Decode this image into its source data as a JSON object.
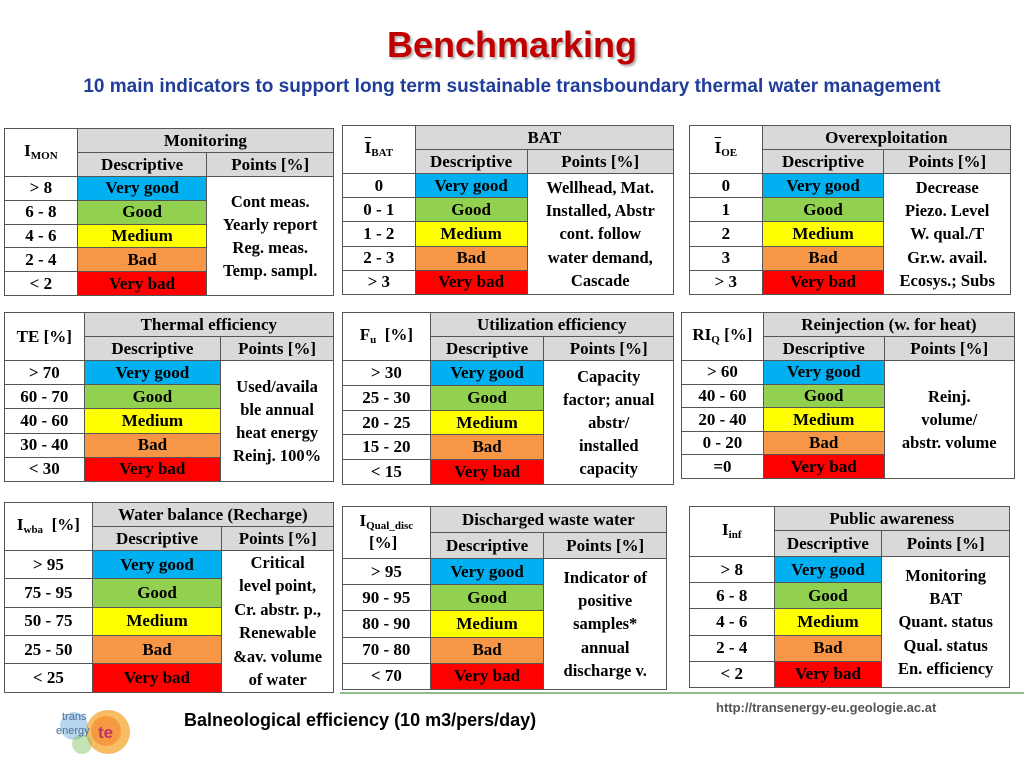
{
  "title": "Benchmarking",
  "subtitle": "10 main indicators to support long term sustainable transboundary thermal water management",
  "headers": {
    "descriptive": "Descriptive",
    "points": "Points [%]"
  },
  "labels": {
    "very_good": "Very good",
    "good": "Good",
    "medium": "Medium",
    "bad": "Bad",
    "very_bad": "Very bad"
  },
  "colors": {
    "very_good": "#00b0f0",
    "good": "#92d050",
    "medium": "#ffff00",
    "bad": "#f79646",
    "very_bad": "#ff0000",
    "title": "#c00000",
    "subtitle": "#1f3d99"
  },
  "tables": {
    "mon": {
      "indicator": "I",
      "indicator_sub": "MON",
      "title": "Monitoring",
      "ranges": [
        "> 8",
        "6 - 8",
        "4 - 6",
        "2 - 4",
        "< 2"
      ],
      "points": [
        "Cont meas.",
        "Yearly report",
        "Reg. meas.",
        "Temp. sampl."
      ]
    },
    "bat": {
      "indicator": "I",
      "indicator_sub": "BAT",
      "title": "BAT",
      "ranges": [
        "0",
        "0 - 1",
        "1 - 2",
        "2 - 3",
        "> 3"
      ],
      "points": [
        "Wellhead, Mat.",
        "Installed, Abstr",
        "cont. follow",
        "water demand,",
        "Cascade"
      ]
    },
    "oe": {
      "indicator": "I",
      "indicator_sub": "OE",
      "title": "Overexploitation",
      "ranges": [
        "0",
        "1",
        "2",
        "3",
        "> 3"
      ],
      "points": [
        "Decrease",
        "Piezo. Level",
        "W. qual./T",
        "Gr.w. avail.",
        "Ecosys.; Subs"
      ]
    },
    "te": {
      "indicator": "TE [%]",
      "title": "Thermal efficiency",
      "ranges": [
        "> 70",
        "60 - 70",
        "40 - 60",
        "30 - 40",
        "< 30"
      ],
      "points": [
        "Used/availa",
        "ble annual",
        "heat energy",
        "Reinj. 100%"
      ]
    },
    "fu": {
      "indicator": "F",
      "indicator_sub": "u",
      "indicator_unit": "[%]",
      "title": "Utilization efficiency",
      "ranges": [
        "> 30",
        "25 - 30",
        "20 - 25",
        "15 - 20",
        "< 15"
      ],
      "points": [
        "Capacity",
        "factor; anual",
        "abstr/",
        "installed",
        "capacity"
      ]
    },
    "riq": {
      "indicator": "RI",
      "indicator_sub": "Q",
      "indicator_unit": "[%]",
      "title": "Reinjection (w. for heat)",
      "ranges": [
        "> 60",
        "40 - 60",
        "20 - 40",
        "0 - 20",
        "=0"
      ],
      "points": [
        "Reinj.",
        "volume/",
        "abstr. volume"
      ]
    },
    "wba": {
      "indicator": "I",
      "indicator_sub": "wba",
      "indicator_unit": "[%]",
      "title": "Water balance (Recharge)",
      "ranges": [
        "> 95",
        "75 - 95",
        "50 - 75",
        "25 - 50",
        "< 25"
      ],
      "points": [
        "Critical",
        "level point,",
        "Cr. abstr. p.,",
        "Renewable",
        "&av. volume",
        "of water"
      ]
    },
    "qual": {
      "indicator": "I",
      "indicator_sub": "Qual_disc",
      "indicator_unit": "[%]",
      "title": "Discharged waste water",
      "ranges": [
        "> 95",
        "90 - 95",
        "80 - 90",
        "70 - 80",
        "< 70"
      ],
      "points": [
        "Indicator of",
        "positive",
        "samples*",
        "annual",
        "discharge v."
      ]
    },
    "inf": {
      "indicator": "I",
      "indicator_sub": "inf",
      "title": "Public awareness",
      "ranges": [
        "> 8",
        "6 - 8",
        "4 - 6",
        "2 - 4",
        "< 2"
      ],
      "points": [
        "Monitoring",
        "BAT",
        "Quant. status",
        "Qual. status",
        "En. efficiency"
      ]
    }
  },
  "footer": {
    "caption": "Balneological efficiency (10 m3/pers/day)",
    "url": "http://transenergy-eu.geologie.ac.at",
    "logo_line1": "trans",
    "logo_line2": "energy",
    "logo_mark": "te"
  }
}
